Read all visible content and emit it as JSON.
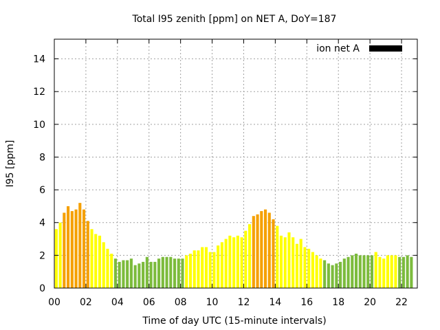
{
  "chart_data": {
    "type": "bar",
    "title": "Total I95 zenith [ppm] on NET A, DoY=187",
    "xlabel": "Time of day UTC (15-minute intervals)",
    "ylabel": "I95 [ppm]",
    "xlim": [
      0,
      23
    ],
    "ylim": [
      0,
      15.2
    ],
    "xticks": [
      "00",
      "02",
      "04",
      "06",
      "08",
      "10",
      "12",
      "14",
      "16",
      "18",
      "20",
      "22"
    ],
    "yticks": [
      "0",
      "2",
      "4",
      "6",
      "8",
      "10",
      "12",
      "14"
    ],
    "grid": true,
    "legend": {
      "label": "ion net A",
      "placement": "top-right",
      "color": "#000000"
    },
    "bar_width_hours": 0.18,
    "colors": {
      "orange": "#f5a000",
      "yellow": "#ffff00",
      "green": "#7cbb3c"
    },
    "series": [
      {
        "x": [
          0.125,
          0.375,
          0.625,
          0.875,
          1.125,
          1.375,
          1.625,
          1.875,
          2.125,
          2.375,
          2.625,
          2.875,
          3.125,
          3.375,
          3.625,
          3.875,
          4.125,
          4.375,
          4.625,
          4.875,
          5.125,
          5.375,
          5.625,
          5.875,
          6.125,
          6.375,
          6.625,
          6.875,
          7.125,
          7.375,
          7.625,
          7.875,
          8.125,
          8.375,
          8.625,
          8.875,
          9.125,
          9.375,
          9.625,
          9.875,
          10.125,
          10.375,
          10.625,
          10.875,
          11.125,
          11.375,
          11.625,
          11.875,
          12.125,
          12.375,
          12.625,
          12.875,
          13.125,
          13.375,
          13.625,
          13.875,
          14.125,
          14.375,
          14.625,
          14.875,
          15.125,
          15.375,
          15.625,
          15.875,
          16.125,
          16.375,
          16.625,
          16.875,
          17.125,
          17.375,
          17.625,
          17.875,
          18.125,
          18.375,
          18.625,
          18.875,
          19.125,
          19.375,
          19.625,
          19.875,
          20.125,
          20.375,
          20.625,
          20.875,
          21.125,
          21.375,
          21.625,
          21.875,
          22.125,
          22.375,
          22.625
        ],
        "values": [
          3.6,
          4.0,
          4.6,
          5.0,
          4.7,
          4.8,
          5.2,
          4.8,
          4.1,
          3.6,
          3.3,
          3.2,
          2.8,
          2.4,
          2.1,
          1.8,
          1.6,
          1.7,
          1.7,
          1.8,
          1.4,
          1.5,
          1.6,
          1.9,
          1.6,
          1.6,
          1.8,
          1.9,
          1.9,
          1.9,
          1.8,
          1.8,
          1.8,
          2.0,
          2.1,
          2.3,
          2.3,
          2.5,
          2.5,
          2.2,
          2.2,
          2.6,
          2.8,
          3.0,
          3.2,
          3.1,
          3.2,
          3.1,
          3.5,
          3.9,
          4.4,
          4.5,
          4.7,
          4.8,
          4.6,
          4.2,
          3.8,
          3.2,
          3.1,
          3.4,
          3.1,
          2.7,
          3.0,
          2.5,
          2.4,
          2.2,
          2.0,
          1.8,
          1.7,
          1.5,
          1.4,
          1.5,
          1.6,
          1.8,
          1.9,
          2.0,
          2.1,
          2.0,
          2.0,
          2.0,
          2.0,
          2.2,
          1.9,
          1.8,
          2.0,
          2.0,
          2.0,
          1.9,
          1.9,
          2.0,
          1.9
        ],
        "levels": [
          "y",
          "y",
          "o",
          "o",
          "o",
          "o",
          "o",
          "o",
          "o",
          "y",
          "y",
          "y",
          "y",
          "y",
          "y",
          "g",
          "g",
          "g",
          "g",
          "g",
          "g",
          "g",
          "g",
          "g",
          "g",
          "g",
          "g",
          "g",
          "g",
          "g",
          "g",
          "g",
          "g",
          "y",
          "y",
          "y",
          "y",
          "y",
          "y",
          "y",
          "y",
          "y",
          "y",
          "y",
          "y",
          "y",
          "y",
          "y",
          "y",
          "y",
          "o",
          "o",
          "o",
          "o",
          "o",
          "o",
          "y",
          "y",
          "y",
          "y",
          "y",
          "y",
          "y",
          "y",
          "y",
          "y",
          "y",
          "y",
          "g",
          "g",
          "g",
          "g",
          "g",
          "g",
          "g",
          "g",
          "g",
          "g",
          "g",
          "g",
          "g",
          "y",
          "y",
          "y",
          "y",
          "y",
          "y",
          "g",
          "g",
          "g",
          "g"
        ]
      }
    ]
  }
}
